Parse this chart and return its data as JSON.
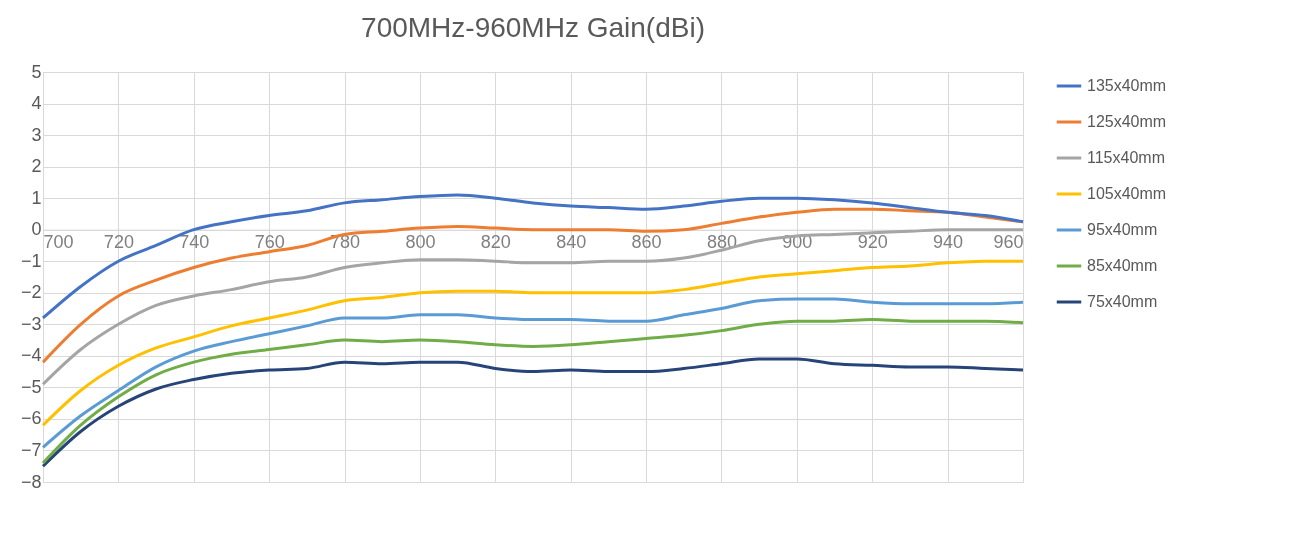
{
  "chart_data": {
    "type": "line",
    "title": "700MHz-960MHz   Gain(dBi)",
    "x": [
      700,
      710,
      720,
      730,
      740,
      750,
      760,
      770,
      780,
      790,
      800,
      810,
      820,
      830,
      840,
      850,
      860,
      870,
      880,
      890,
      900,
      910,
      920,
      930,
      940,
      950,
      960
    ],
    "xlim": [
      700,
      960
    ],
    "xticks": [
      700,
      720,
      740,
      760,
      780,
      800,
      820,
      840,
      860,
      880,
      900,
      920,
      940,
      960
    ],
    "ylim": [
      -8,
      5
    ],
    "yticks": [
      -8,
      -7,
      -6,
      -5,
      -4,
      -3,
      -2,
      -1,
      0,
      1,
      2,
      3,
      4,
      5
    ],
    "grid": true,
    "legend": "right",
    "marker": "none",
    "line_style": "solid",
    "series": [
      {
        "name": "135x40mm",
        "color": "#4472c4",
        "values": [
          -2.8,
          -1.8,
          -1.0,
          -0.5,
          0.0,
          0.25,
          0.45,
          0.6,
          0.85,
          0.95,
          1.05,
          1.1,
          1.0,
          0.85,
          0.75,
          0.7,
          0.65,
          0.75,
          0.9,
          1.0,
          1.0,
          0.95,
          0.85,
          0.7,
          0.55,
          0.45,
          0.25
        ]
      },
      {
        "name": "125x40mm",
        "color": "#ed7d31",
        "values": [
          -4.2,
          -3.0,
          -2.1,
          -1.6,
          -1.2,
          -0.9,
          -0.7,
          -0.5,
          -0.15,
          -0.05,
          0.05,
          0.1,
          0.05,
          0.0,
          0.0,
          0.0,
          -0.05,
          0.0,
          0.2,
          0.4,
          0.55,
          0.65,
          0.65,
          0.6,
          0.55,
          0.4,
          0.25
        ]
      },
      {
        "name": "115x40mm",
        "color": "#a5a5a5",
        "values": [
          -4.9,
          -3.8,
          -3.0,
          -2.4,
          -2.1,
          -1.9,
          -1.65,
          -1.5,
          -1.2,
          -1.05,
          -0.95,
          -0.95,
          -1.0,
          -1.05,
          -1.05,
          -1.0,
          -1.0,
          -0.9,
          -0.65,
          -0.35,
          -0.2,
          -0.15,
          -0.1,
          -0.05,
          0.0,
          0.0,
          0.0
        ]
      },
      {
        "name": "105x40mm",
        "color": "#ffc000",
        "values": [
          -6.2,
          -5.1,
          -4.3,
          -3.75,
          -3.4,
          -3.05,
          -2.8,
          -2.55,
          -2.25,
          -2.15,
          -2.0,
          -1.95,
          -1.95,
          -2.0,
          -2.0,
          -2.0,
          -2.0,
          -1.9,
          -1.7,
          -1.5,
          -1.4,
          -1.3,
          -1.2,
          -1.15,
          -1.05,
          -1.0,
          -1.0
        ]
      },
      {
        "name": "95x40mm",
        "color": "#5b9bd5",
        "values": [
          -6.9,
          -5.9,
          -5.1,
          -4.35,
          -3.85,
          -3.55,
          -3.3,
          -3.05,
          -2.8,
          -2.8,
          -2.7,
          -2.7,
          -2.8,
          -2.85,
          -2.85,
          -2.9,
          -2.9,
          -2.7,
          -2.5,
          -2.25,
          -2.2,
          -2.2,
          -2.3,
          -2.35,
          -2.35,
          -2.35,
          -2.3
        ]
      },
      {
        "name": "85x40mm",
        "color": "#70ad47",
        "values": [
          -7.4,
          -6.2,
          -5.3,
          -4.6,
          -4.2,
          -3.95,
          -3.8,
          -3.65,
          -3.5,
          -3.55,
          -3.5,
          -3.55,
          -3.65,
          -3.7,
          -3.65,
          -3.55,
          -3.45,
          -3.35,
          -3.2,
          -3.0,
          -2.9,
          -2.9,
          -2.85,
          -2.9,
          -2.9,
          -2.9,
          -2.95
        ]
      },
      {
        "name": "75x40mm",
        "color": "#264478",
        "values": [
          -7.5,
          -6.4,
          -5.6,
          -5.05,
          -4.75,
          -4.55,
          -4.45,
          -4.4,
          -4.2,
          -4.25,
          -4.2,
          -4.2,
          -4.4,
          -4.5,
          -4.45,
          -4.5,
          -4.5,
          -4.4,
          -4.25,
          -4.1,
          -4.1,
          -4.25,
          -4.3,
          -4.35,
          -4.35,
          -4.4,
          -4.45
        ]
      }
    ]
  }
}
